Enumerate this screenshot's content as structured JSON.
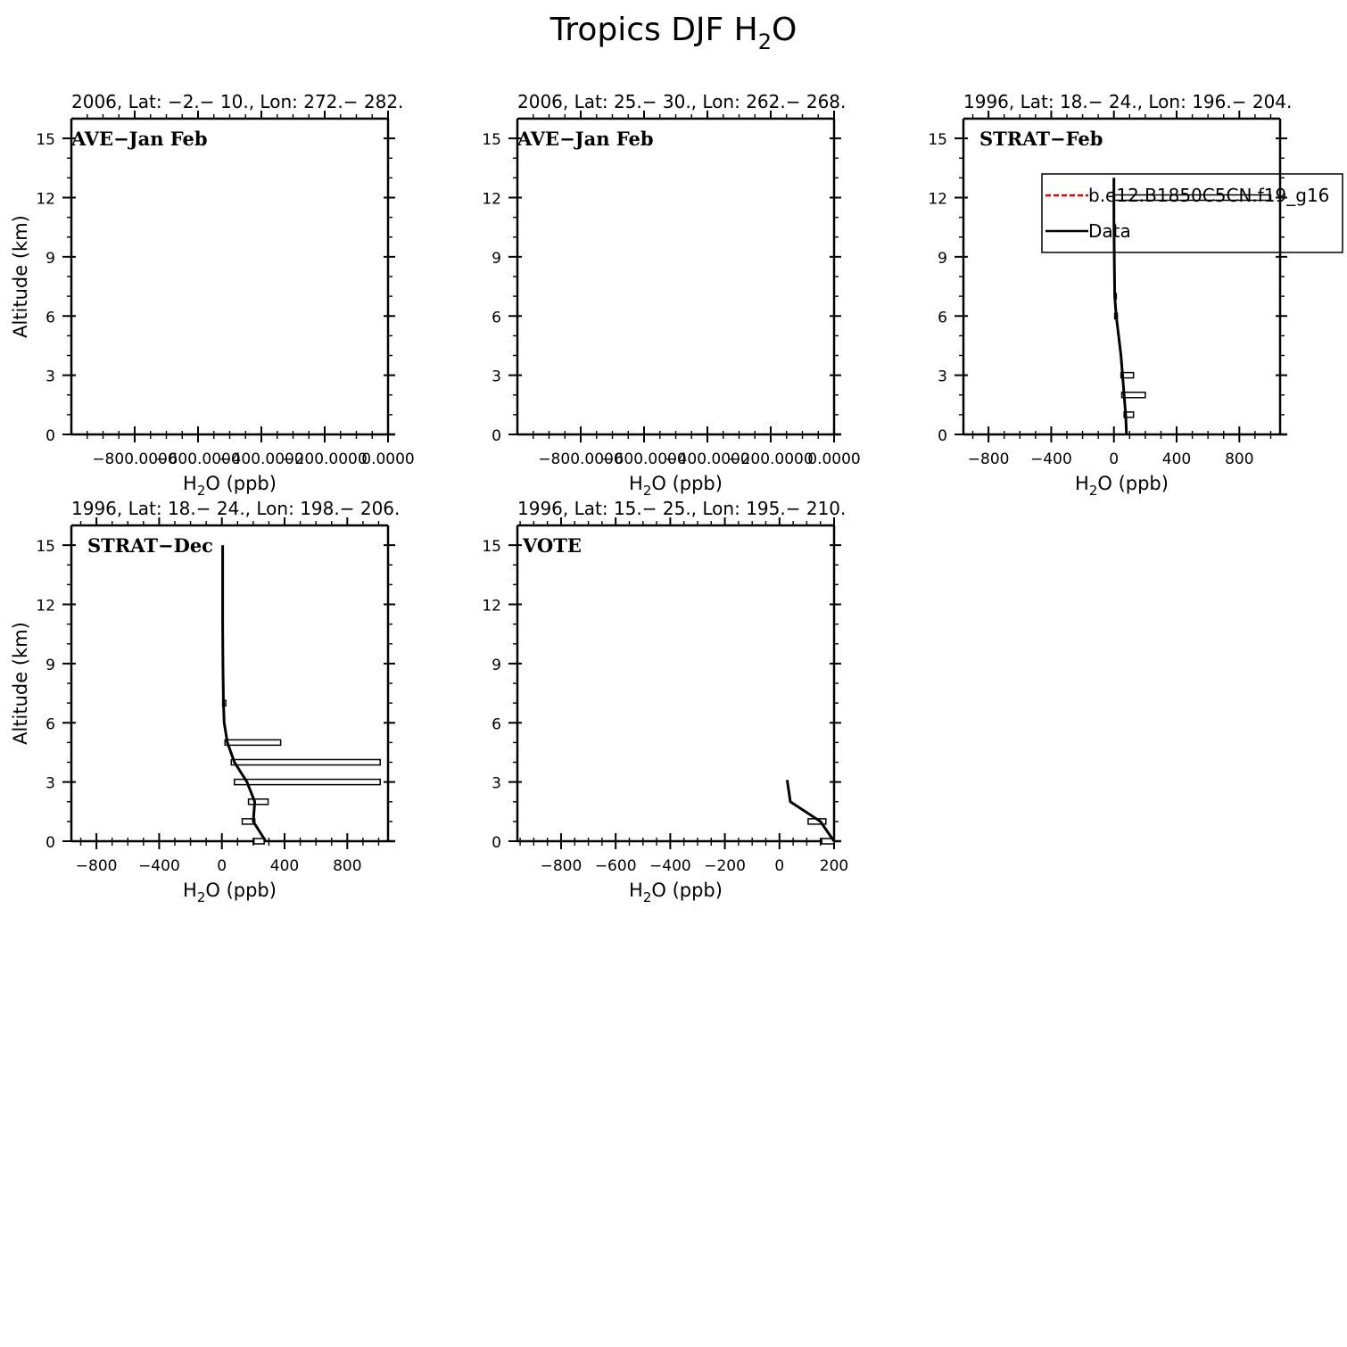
{
  "figure": {
    "title_main": "Tropics DJF H",
    "title_sub": "2",
    "title_tail": "O"
  },
  "chart_data": [
    {
      "type": "line",
      "title": "2006, Lat: −2.− 10., Lon: 272.− 282.",
      "campaign": "AVE−Jan Feb",
      "xlabel_main": "H",
      "xlabel_sub": "2",
      "xlabel_tail": "O (ppb)",
      "ylabel": "Altitude (km)",
      "xlim": [
        -1000,
        0
      ],
      "ylim": [
        0,
        16
      ],
      "xticks": [
        -800,
        -600,
        -400,
        -200,
        0
      ],
      "xtick_labels": [
        "−800.0000",
        "−600.0000",
        "−400.0000",
        "−200.0000",
        "0.0000"
      ],
      "yticks": [
        0,
        3,
        6,
        9,
        12,
        15
      ],
      "ytick_labels": [
        "0",
        "3",
        "6",
        "9",
        "12",
        "15"
      ],
      "series": [],
      "bars": []
    },
    {
      "type": "line",
      "title": "2006, Lat: 25.− 30., Lon: 262.− 268.",
      "campaign": "AVE−Jan Feb",
      "xlabel_main": "H",
      "xlabel_sub": "2",
      "xlabel_tail": "O (ppb)",
      "ylabel": "",
      "xlim": [
        -1000,
        0
      ],
      "ylim": [
        0,
        16
      ],
      "xticks": [
        -800,
        -600,
        -400,
        -200,
        0
      ],
      "xtick_labels": [
        "−800.0000",
        "−600.0000",
        "−400.0000",
        "−200.0000",
        "0.0000"
      ],
      "yticks": [
        0,
        3,
        6,
        9,
        12,
        15
      ],
      "ytick_labels": [
        "0",
        "3",
        "6",
        "9",
        "12",
        "15"
      ],
      "series": [],
      "bars": []
    },
    {
      "type": "line",
      "title": "1996, Lat: 18.− 24., Lon: 196.− 204.",
      "campaign": "STRAT−Feb",
      "xlabel_main": "H",
      "xlabel_sub": "2",
      "xlabel_tail": "O (ppb)",
      "ylabel": "",
      "xlim": [
        -960,
        1060
      ],
      "ylim": [
        0,
        16
      ],
      "xticks": [
        -800,
        -400,
        0,
        400,
        800
      ],
      "xtick_labels": [
        "−800",
        "−400",
        "0",
        "400",
        "800"
      ],
      "yticks": [
        0,
        3,
        6,
        9,
        12,
        15
      ],
      "ytick_labels": [
        "0",
        "3",
        "6",
        "9",
        "12",
        "15"
      ],
      "legend": {
        "position": "top-right",
        "entries": [
          {
            "label": "b.e12.B1850C5CN.f19_g16",
            "color": "#e00000",
            "style": "dashed"
          },
          {
            "label": "Data",
            "color": "#000000",
            "style": "solid"
          }
        ]
      },
      "series": [
        {
          "x": [
            80,
            75,
            65,
            55,
            45,
            30,
            15,
            5,
            2,
            0,
            0
          ],
          "y": [
            0,
            1,
            2,
            3,
            4,
            5,
            6,
            7,
            9,
            11,
            13
          ]
        }
      ],
      "bars": [
        {
          "y": 1,
          "x0": 65,
          "x1": 125
        },
        {
          "y": 2,
          "x0": 50,
          "x1": 200
        },
        {
          "y": 3,
          "x0": 45,
          "x1": 125
        },
        {
          "y": 6,
          "x0": 5,
          "x1": 22
        },
        {
          "y": 7,
          "x0": 5,
          "x1": 15
        },
        {
          "y": 12,
          "x0": 0,
          "x1": 1000
        }
      ]
    },
    {
      "type": "line",
      "title": "1996, Lat: 18.− 24., Lon: 198.− 206.",
      "campaign": "STRAT−Dec",
      "xlabel_main": "H",
      "xlabel_sub": "2",
      "xlabel_tail": "O (ppb)",
      "ylabel": "Altitude (km)",
      "xlim": [
        -960,
        1060
      ],
      "ylim": [
        0,
        16
      ],
      "xticks": [
        -800,
        -400,
        0,
        400,
        800
      ],
      "xtick_labels": [
        "−800",
        "−400",
        "0",
        "400",
        "800"
      ],
      "yticks": [
        0,
        3,
        6,
        9,
        12,
        15
      ],
      "ytick_labels": [
        "0",
        "3",
        "6",
        "9",
        "12",
        "15"
      ],
      "series": [
        {
          "x": [
            280,
            200,
            210,
            160,
            80,
            35,
            15,
            10,
            7,
            5,
            5,
            5
          ],
          "y": [
            0,
            1,
            2,
            3,
            4,
            5,
            6,
            7,
            9,
            11,
            13,
            15
          ]
        }
      ],
      "bars": [
        {
          "y": 0,
          "x0": 205,
          "x1": 270
        },
        {
          "y": 1,
          "x0": 130,
          "x1": 210
        },
        {
          "y": 2,
          "x0": 170,
          "x1": 295
        },
        {
          "y": 3,
          "x0": 80,
          "x1": 1010
        },
        {
          "y": 4,
          "x0": 60,
          "x1": 1010
        },
        {
          "y": 5,
          "x0": 20,
          "x1": 375
        },
        {
          "y": 7,
          "x0": 5,
          "x1": 25
        }
      ]
    },
    {
      "type": "line",
      "title": "1996, Lat: 15.− 25., Lon: 195.− 210.",
      "campaign": "VOTE",
      "xlabel_main": "H",
      "xlabel_sub": "2",
      "xlabel_tail": "O (ppb)",
      "ylabel": "",
      "xlim": [
        -960,
        200
      ],
      "ylim": [
        0,
        16
      ],
      "xticks": [
        -800,
        -600,
        -400,
        -200,
        0,
        200
      ],
      "xtick_labels": [
        "−800",
        "−600",
        "−400",
        "−200",
        "0",
        "200"
      ],
      "yticks": [
        0,
        3,
        6,
        9,
        12,
        15
      ],
      "ytick_labels": [
        "0",
        "3",
        "6",
        "9",
        "12",
        "15"
      ],
      "series": [
        {
          "x": [
            200,
            150,
            40,
            28
          ],
          "y": [
            0,
            1,
            2,
            3.1
          ]
        }
      ],
      "bars": [
        {
          "y": 0,
          "x0": 155,
          "x1": 200
        },
        {
          "y": 1,
          "x0": 105,
          "x1": 170
        }
      ]
    }
  ]
}
